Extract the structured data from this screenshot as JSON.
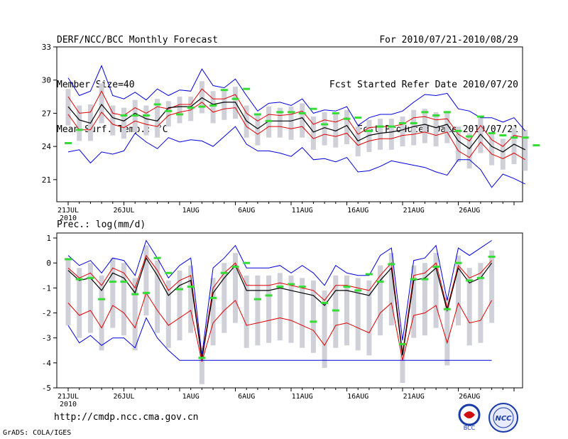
{
  "header": {
    "line1": "DERF/NCC/BCC Monthly Forecast",
    "line2": "Member Size=40",
    "line3": "Mean Surf. Temp.: °C",
    "right1": "For 2010/07/21-2010/08/29",
    "right2": "Fcst Started Refer Date 2010/07/20",
    "right3": "Fcst Produced Date 2010/07/21"
  },
  "prec_label": "Prec.: log(mm/d)",
  "url": "http://cmdp.ncc.cma.gov.cn",
  "grads": "GrADS: COLA/IGES",
  "logos": {
    "bcc": "BCC",
    "ncc": "NCC"
  },
  "colors": {
    "max_min": "#0000dd",
    "spread": "#dd0000",
    "mean": "#000000",
    "median": "#33dd33",
    "bar": "#d0d0d8"
  },
  "chart_data": [
    {
      "type": "line",
      "title": "Mean Surf. Temp.: °C",
      "x_ticks": [
        "21JUL",
        "26JUL",
        "1AUG",
        "6AUG",
        "11AUG",
        "16AUG",
        "21AUG",
        "26AUG"
      ],
      "x_year": "2010",
      "ylim": [
        19,
        33
      ],
      "y_ticks": [
        21,
        24,
        27,
        30,
        33
      ],
      "days": 40,
      "series": [
        {
          "name": "max",
          "values": [
            30.2,
            28.6,
            29.0,
            31.3,
            28.6,
            28.3,
            28.9,
            28.2,
            29.2,
            28.6,
            29.1,
            29.0,
            31.0,
            29.5,
            29.3,
            30.1,
            28.6,
            27.2,
            27.9,
            28.0,
            27.7,
            28.3,
            27.0,
            27.3,
            27.2,
            27.6,
            25.9,
            26.6,
            26.9,
            26.9,
            27.2,
            28.0,
            28.7,
            28.6,
            28.8,
            27.4,
            27.2,
            26.6,
            26.6,
            26.2,
            26.6,
            25.4
          ]
        },
        {
          "name": "upper",
          "values": [
            28.5,
            27.0,
            27.1,
            29.0,
            27.0,
            26.8,
            27.5,
            27.0,
            27.6,
            27.4,
            27.8,
            27.8,
            29.2,
            28.3,
            28.3,
            28.7,
            27.0,
            26.3,
            26.9,
            26.8,
            26.9,
            27.2,
            26.0,
            26.4,
            26.2,
            26.6,
            25.1,
            25.7,
            25.8,
            25.8,
            26.0,
            26.6,
            26.7,
            26.4,
            26.5,
            25.1,
            24.5,
            25.9,
            24.6,
            24.0,
            25.0,
            24.8
          ]
        },
        {
          "name": "mean",
          "values": [
            27.6,
            26.4,
            26.1,
            27.8,
            26.6,
            26.3,
            27.0,
            26.5,
            26.3,
            27.5,
            27.6,
            27.6,
            28.4,
            27.8,
            28.0,
            28.0,
            26.3,
            25.6,
            26.3,
            26.3,
            26.3,
            26.6,
            25.3,
            25.7,
            25.4,
            25.9,
            24.5,
            25.0,
            25.2,
            25.3,
            25.5,
            25.8,
            26.0,
            25.7,
            26.0,
            24.5,
            23.8,
            25.1,
            24.0,
            23.5,
            24.2,
            23.7
          ]
        },
        {
          "name": "lower",
          "values": [
            26.9,
            25.5,
            25.5,
            27.1,
            26.0,
            25.7,
            26.3,
            26.0,
            25.8,
            26.8,
            27.1,
            27.3,
            28.0,
            27.1,
            27.4,
            27.5,
            25.8,
            25.1,
            25.8,
            25.8,
            25.6,
            25.8,
            24.7,
            25.1,
            24.9,
            25.2,
            24.1,
            24.5,
            24.7,
            24.7,
            25.0,
            25.1,
            25.3,
            25.0,
            25.3,
            23.6,
            23.0,
            24.4,
            23.3,
            22.9,
            23.4,
            22.8
          ]
        },
        {
          "name": "min",
          "values": [
            23.5,
            23.7,
            22.5,
            23.5,
            23.3,
            23.6,
            25.2,
            24.4,
            23.8,
            24.8,
            24.4,
            24.6,
            24.5,
            24.0,
            24.9,
            25.8,
            24.2,
            23.6,
            23.6,
            23.4,
            23.1,
            23.9,
            22.8,
            22.9,
            22.6,
            23.0,
            21.7,
            21.8,
            22.2,
            22.7,
            22.5,
            22.3,
            22.1,
            21.7,
            21.4,
            22.8,
            22.8,
            21.9,
            20.3,
            21.5,
            21.1,
            20.6
          ]
        },
        {
          "name": "median",
          "values": [
            24.3,
            25.5,
            null,
            null,
            null,
            26.8,
            26.8,
            26.8,
            27.8,
            27.2,
            26.9,
            27.5,
            27.6,
            27.7,
            29.1,
            28.3,
            29.2,
            26.9,
            26.3,
            27.1,
            27.1,
            27.0,
            27.4,
            26.0,
            27.0,
            26.5,
            26.6,
            25.4,
            25.8,
            25.8,
            26.1,
            26.1,
            27.1,
            26.8,
            27.1,
            25.4,
            24.9,
            26.7,
            25.2,
            25.0,
            24.8,
            24.8,
            24.1
          ]
        }
      ]
    },
    {
      "type": "line",
      "title": "Prec.: log(mm/d)",
      "x_ticks": [
        "21JUL",
        "26JUL",
        "1AUG",
        "6AUG",
        "11AUG",
        "16AUG",
        "21AUG",
        "26AUG"
      ],
      "x_year": "2010",
      "ylim": [
        -5,
        1.2
      ],
      "y_ticks": [
        -5,
        -4,
        -3,
        -2,
        -1,
        0,
        1
      ],
      "days": 40,
      "series": [
        {
          "name": "max",
          "values": [
            0.3,
            -0.1,
            0.1,
            -0.4,
            0.2,
            0.1,
            -0.5,
            0.9,
            0.2,
            -0.6,
            -0.1,
            0.2,
            -3.7,
            -0.2,
            0.2,
            0.7,
            -0.2,
            -0.2,
            -0.2,
            -0.1,
            -0.4,
            -0.1,
            -0.4,
            -0.9,
            -0.1,
            -0.4,
            -0.5,
            -0.5,
            0.3,
            0.6,
            -3.1,
            0.1,
            0.2,
            0.7,
            -1.5,
            0.6,
            0.3,
            0.6,
            0.9
          ]
        },
        {
          "name": "upper",
          "values": [
            -0.2,
            -0.6,
            -0.4,
            -0.9,
            -0.2,
            -0.4,
            -1.0,
            0.3,
            -0.3,
            -1.1,
            -0.7,
            -0.5,
            -3.8,
            -1.0,
            -0.4,
            0.0,
            -0.9,
            -0.9,
            -0.9,
            -0.8,
            -0.9,
            -1.0,
            -1.1,
            -1.5,
            -0.9,
            -0.9,
            -1.0,
            -1.1,
            -0.5,
            0.0,
            -3.6,
            -0.5,
            -0.4,
            0.0,
            -1.8,
            -0.1,
            -0.6,
            -0.4,
            0.1
          ]
        },
        {
          "name": "mean",
          "values": [
            -0.3,
            -0.7,
            -0.6,
            -1.1,
            -0.4,
            -0.6,
            -1.2,
            0.2,
            -0.5,
            -1.3,
            -0.9,
            -0.7,
            -3.85,
            -1.2,
            -0.6,
            -0.1,
            -1.1,
            -1.1,
            -1.1,
            -1.0,
            -1.1,
            -1.2,
            -1.3,
            -1.7,
            -1.1,
            -1.1,
            -1.2,
            -1.3,
            -0.7,
            -0.2,
            -3.7,
            -0.7,
            -0.6,
            -0.2,
            -1.9,
            -0.2,
            -0.8,
            -0.6,
            0.0
          ]
        },
        {
          "name": "lower",
          "values": [
            -1.6,
            -2.1,
            -1.9,
            -2.6,
            -1.7,
            -2.0,
            -2.6,
            -1.2,
            -1.9,
            -2.5,
            -2.2,
            -1.9,
            -3.95,
            -2.4,
            -1.9,
            -1.5,
            -2.5,
            -2.4,
            -2.3,
            -2.2,
            -2.3,
            -2.5,
            -2.7,
            -3.3,
            -2.5,
            -2.4,
            -2.6,
            -2.8,
            -2.0,
            -1.6,
            -3.9,
            -2.1,
            -2.0,
            -1.7,
            -3.2,
            -1.6,
            -2.4,
            -2.3,
            -1.5
          ]
        },
        {
          "name": "min",
          "values": [
            -2.5,
            -3.2,
            -2.9,
            -3.3,
            -3.0,
            -3.0,
            -3.4,
            -2.2,
            -3.0,
            -3.5,
            -3.9,
            -3.9,
            -3.9,
            -3.9,
            -3.9,
            -3.9,
            -3.9,
            -3.9,
            -3.9,
            -3.9,
            -3.9,
            -3.9,
            -3.9,
            -3.9,
            -3.9,
            -3.9,
            -3.9,
            -3.9,
            -3.9,
            -3.9,
            -3.9,
            -3.9,
            -3.9,
            -3.9,
            -3.9,
            -3.9,
            -3.9,
            -3.9,
            -3.9
          ]
        },
        {
          "name": "median",
          "values": [
            0.15,
            -0.65,
            -0.6,
            -1.45,
            -0.75,
            -0.75,
            -1.25,
            -1.2,
            0.2,
            -0.4,
            -1.05,
            -0.95,
            -3.8,
            -1.4,
            -0.4,
            -0.15,
            0.0,
            -1.45,
            -1.3,
            -0.95,
            -0.85,
            -0.95,
            -2.35,
            -1.6,
            -1.9,
            -0.95,
            -1.1,
            -0.45,
            -0.75,
            -0.05,
            -3.25,
            -0.65,
            -0.65,
            -0.15,
            -1.85,
            0.0,
            -0.7,
            -0.6,
            0.25
          ]
        }
      ]
    }
  ]
}
